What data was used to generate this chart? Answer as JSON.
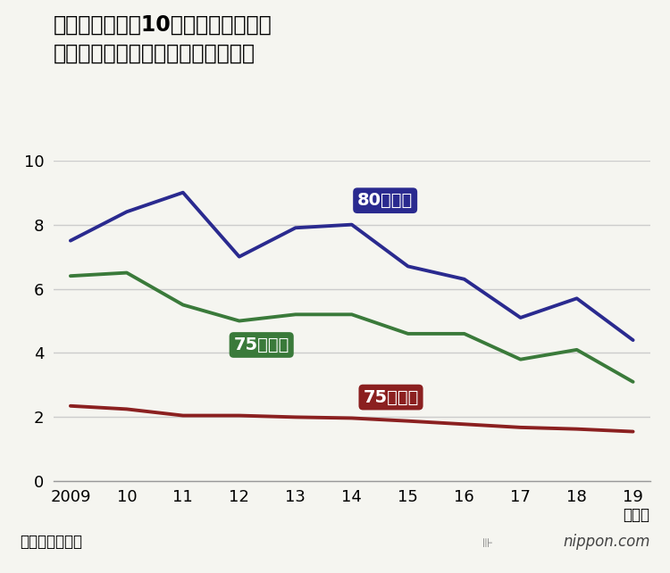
{
  "title_line1": "運転免許保有者10万人当たりで見た",
  "title_line2": "年齢別運転者の死亡事故件数の推移",
  "years": [
    2009,
    2010,
    2011,
    2012,
    2013,
    2014,
    2015,
    2016,
    2017,
    2018,
    2019
  ],
  "x_labels": [
    "2009",
    "10",
    "11",
    "12",
    "13",
    "14",
    "15",
    "16",
    "17",
    "18",
    "19"
  ],
  "series_80plus": [
    7.5,
    8.4,
    9.0,
    7.0,
    7.9,
    8.0,
    6.7,
    6.3,
    5.1,
    5.7,
    4.4
  ],
  "series_75plus": [
    6.4,
    6.5,
    5.5,
    5.0,
    5.2,
    5.2,
    4.6,
    4.6,
    3.8,
    4.1,
    3.1
  ],
  "series_under75": [
    2.35,
    2.25,
    2.05,
    2.05,
    2.0,
    1.97,
    1.88,
    1.78,
    1.68,
    1.63,
    1.55
  ],
  "color_80plus": "#2a2a8f",
  "color_75plus": "#3a7a3a",
  "color_under75": "#8b2020",
  "label_80plus": "80歳以上",
  "label_75plus": "75歳以上",
  "label_under75": "75歳未満",
  "source_text": "（警察庁調べ）",
  "year_label": "（年）",
  "bg_color": "#f5f5f0",
  "grid_color": "#cccccc",
  "ylim": [
    0,
    10
  ],
  "yticks": [
    0,
    2,
    4,
    6,
    8,
    10
  ],
  "linewidth": 2.8,
  "title_fontsize": 17,
  "tick_fontsize": 13,
  "label_fontsize": 14
}
